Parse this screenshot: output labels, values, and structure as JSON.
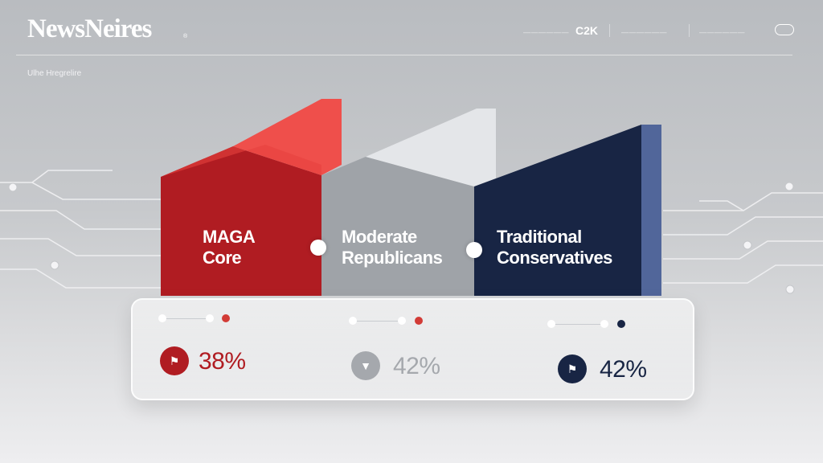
{
  "header": {
    "logo": "NewsNeires",
    "logo_mark": "®",
    "nav_text_1": "——————",
    "nav_code": "C2K",
    "nav_text_2": "——————",
    "nav_text_3": "——————",
    "sub_label": "Ulhe Hregrelire"
  },
  "panels": [
    {
      "line1": "MAGA",
      "line2": "Core",
      "color": "#b01c22",
      "top_color": "#ef4f4b"
    },
    {
      "line1": "Moderate",
      "line2": "Republicans",
      "color": "#9fa3a8",
      "top_color": "#d3d6da"
    },
    {
      "line1": "Traditional",
      "line2": "Conservatives",
      "color": "#182544",
      "top_color": "#2d3f6a"
    }
  ],
  "stats": [
    {
      "value": "38%",
      "icon": "flag-icon",
      "icon_color": "#b01c22",
      "text_color": "#b01c22"
    },
    {
      "value": "42%",
      "icon": "chevron-down-icon",
      "icon_color": "#a5a8ad",
      "text_color": "#a5a8ad"
    },
    {
      "value": "42%",
      "icon": "flag-icon",
      "icon_color": "#182544",
      "text_color": "#182544"
    }
  ]
}
